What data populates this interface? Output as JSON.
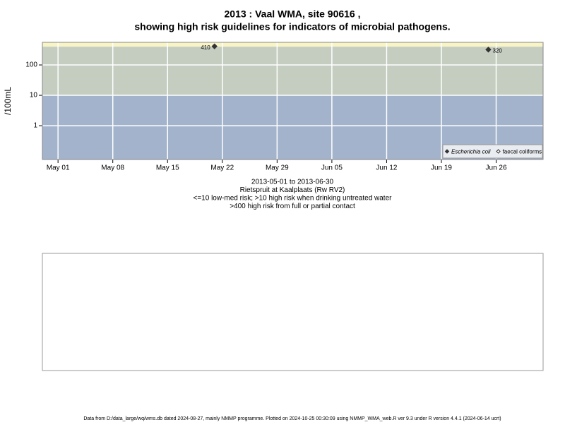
{
  "chart_data": {
    "type": "scatter",
    "title": "2013 : Vaal WMA, site 90616 ,",
    "subtitle": "showing high risk guidelines for indicators of microbial pathogens.",
    "ylabel": "/100mL",
    "notes": [
      "2013-05-01 to 2013-06-30",
      "Rietspruit at Kaalplaats (Rw RV2)",
      "<=10 low-med risk; >10 high risk when drinking untreated water",
      ">400 high risk from full or partial contact"
    ],
    "log_y": true,
    "ylim": [
      0.077,
      555
    ],
    "yticks": [
      1,
      10,
      100
    ],
    "xlim": [
      "2013-04-29",
      "2013-07-02"
    ],
    "xticks": [
      {
        "value": "2013-05-01",
        "label": "May 01"
      },
      {
        "value": "2013-05-08",
        "label": "May 08"
      },
      {
        "value": "2013-05-15",
        "label": "May 15"
      },
      {
        "value": "2013-05-22",
        "label": "May 22"
      },
      {
        "value": "2013-05-29",
        "label": "May 29"
      },
      {
        "value": "2013-06-05",
        "label": "Jun 05"
      },
      {
        "value": "2013-06-12",
        "label": "Jun 12"
      },
      {
        "value": "2013-06-19",
        "label": "Jun 19"
      },
      {
        "value": "2013-06-26",
        "label": "Jun 26"
      }
    ],
    "grid": true,
    "thresholds": [
      10,
      400
    ],
    "band_colors": [
      "#a3b3cc",
      "#c4cdc0",
      "#f8f4c6"
    ],
    "legend": "bottom-right",
    "series": [
      {
        "name": "Escherichia coli",
        "color": "#333333",
        "filled": true,
        "x": [
          "2013-05-21",
          "2013-06-25"
        ],
        "values": [
          410,
          320
        ]
      },
      {
        "name": "faecal coliforms",
        "color": "#333333",
        "filled": false,
        "x": [],
        "values": []
      }
    ],
    "footer": "Data from D:/data_large/wq/wms.db dated 2024-08-27, mainly NMMP programme. Plotted on 2024-10-25 00:30:09 using NMMP_WMA_web.R ver 9.3 under R version 4.4.1 (2024-06-14 ucrt)"
  }
}
